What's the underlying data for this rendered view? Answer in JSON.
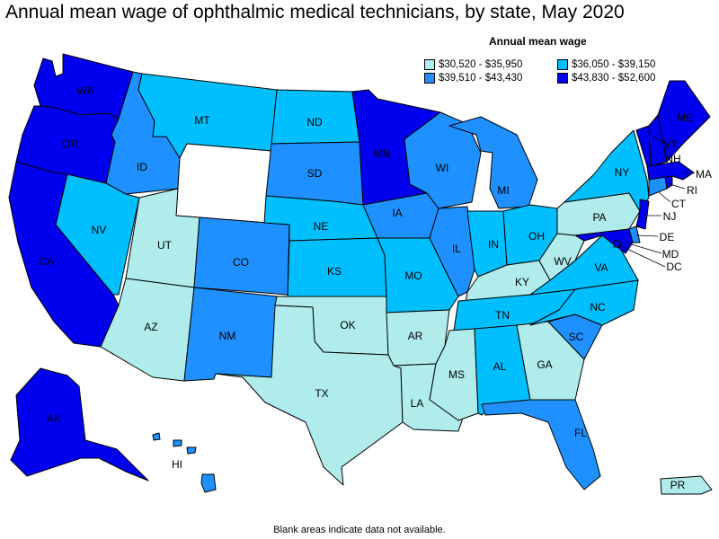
{
  "title": "Annual mean wage of ophthalmic medical technicians, by state, May 2020",
  "legend": {
    "title": "Annual mean wage",
    "items": [
      {
        "label": "$30,520 - $35,950",
        "color": "#b0ecec"
      },
      {
        "label": "$36,050 - $39,150",
        "color": "#00bfff"
      },
      {
        "label": "$39,510 - $43,430",
        "color": "#1e90ff"
      },
      {
        "label": "$43,830 - $52,600",
        "color": "#0000ee"
      }
    ]
  },
  "footnote": "Blank areas indicate data not available.",
  "no_data_color": "#ffffff",
  "states": {
    "WA": {
      "label": "WA",
      "class": 3
    },
    "OR": {
      "label": "OR",
      "class": 3
    },
    "CA": {
      "label": "CA",
      "class": 3
    },
    "ID": {
      "label": "ID",
      "class": 2
    },
    "NV": {
      "label": "NV",
      "class": 1
    },
    "MT": {
      "label": "MT",
      "class": 1
    },
    "WY": {
      "label": "",
      "class": -1
    },
    "UT": {
      "label": "UT",
      "class": 0
    },
    "AZ": {
      "label": "AZ",
      "class": 0
    },
    "CO": {
      "label": "CO",
      "class": 2
    },
    "NM": {
      "label": "NM",
      "class": 2
    },
    "ND": {
      "label": "ND",
      "class": 1
    },
    "SD": {
      "label": "SD",
      "class": 2
    },
    "NE": {
      "label": "NE",
      "class": 1
    },
    "KS": {
      "label": "KS",
      "class": 1
    },
    "OK": {
      "label": "OK",
      "class": 0
    },
    "TX": {
      "label": "TX",
      "class": 0
    },
    "MN": {
      "label": "MN",
      "class": 3
    },
    "IA": {
      "label": "IA",
      "class": 2
    },
    "MO": {
      "label": "MO",
      "class": 1
    },
    "AR": {
      "label": "AR",
      "class": 0
    },
    "LA": {
      "label": "LA",
      "class": 0
    },
    "WI": {
      "label": "WI",
      "class": 2
    },
    "IL": {
      "label": "IL",
      "class": 2
    },
    "MI": {
      "label": "MI",
      "class": 2
    },
    "IN": {
      "label": "IN",
      "class": 1
    },
    "OH": {
      "label": "OH",
      "class": 1
    },
    "KY": {
      "label": "KY",
      "class": 0
    },
    "TN": {
      "label": "TN",
      "class": 1
    },
    "MS": {
      "label": "MS",
      "class": 0
    },
    "AL": {
      "label": "AL",
      "class": 1
    },
    "GA": {
      "label": "GA",
      "class": 0
    },
    "FL": {
      "label": "FL",
      "class": 2
    },
    "SC": {
      "label": "SC",
      "class": 2
    },
    "NC": {
      "label": "NC",
      "class": 1
    },
    "VA": {
      "label": "VA",
      "class": 1
    },
    "WV": {
      "label": "WV",
      "class": 0
    },
    "PA": {
      "label": "PA",
      "class": 0
    },
    "NY": {
      "label": "NY",
      "class": 1
    },
    "VT": {
      "label": "VT",
      "class": 3
    },
    "NH": {
      "label": "NH",
      "class": 3
    },
    "ME": {
      "label": "ME",
      "class": 3
    },
    "MA": {
      "label": "MA",
      "class": 3
    },
    "RI": {
      "label": "RI",
      "class": 3
    },
    "CT": {
      "label": "CT",
      "class": 2
    },
    "NJ": {
      "label": "NJ",
      "class": 3
    },
    "DE": {
      "label": "DE",
      "class": 2
    },
    "MD": {
      "label": "MD",
      "class": 3
    },
    "DC": {
      "label": "DC",
      "class": 3
    },
    "AK": {
      "label": "AK",
      "class": 3
    },
    "HI": {
      "label": "HI",
      "class": 2
    },
    "PR": {
      "label": "PR",
      "class": 0
    }
  }
}
